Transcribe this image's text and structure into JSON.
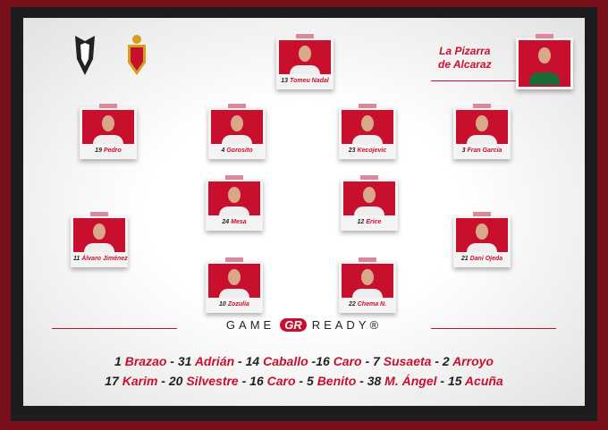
{
  "header": {
    "title_line1": "La Pizarra",
    "title_line2": "de Alcaraz"
  },
  "sponsor": {
    "left": "GAME",
    "logo": "GR",
    "right": "READY®"
  },
  "players": [
    {
      "num": "13",
      "name": "Tomeu Nadal"
    },
    {
      "num": "19",
      "name": "Pedro"
    },
    {
      "num": "4",
      "name": "Gorosito"
    },
    {
      "num": "23",
      "name": "Kecojevic"
    },
    {
      "num": "3",
      "name": "Fran García"
    },
    {
      "num": "24",
      "name": "Mesa"
    },
    {
      "num": "12",
      "name": "Erice"
    },
    {
      "num": "11",
      "name": "Álvaro Jiménez"
    },
    {
      "num": "21",
      "name": "Dani Ojeda"
    },
    {
      "num": "10",
      "name": "Zozulia"
    },
    {
      "num": "22",
      "name": "Chema N."
    }
  ],
  "subs_row1": [
    [
      "1",
      "Brazao",
      " - "
    ],
    [
      "31",
      "Adrián",
      " - "
    ],
    [
      "14",
      "Caballo",
      " -"
    ],
    [
      "16",
      "Caro",
      " - "
    ],
    [
      "7",
      "Susaeta",
      " - "
    ],
    [
      "2",
      "Arroyo",
      ""
    ]
  ],
  "subs_row2": [
    [
      "17",
      "Karim",
      " - "
    ],
    [
      "20",
      "Silvestre",
      " - "
    ],
    [
      "16",
      "Caro",
      " - "
    ],
    [
      "5",
      "Benito",
      " - "
    ],
    [
      "38",
      "M. Ángel",
      " - "
    ],
    [
      "15",
      "Acuña",
      ""
    ]
  ],
  "colors": {
    "accent": "#c8102e",
    "frame": "#1d1d1f"
  }
}
